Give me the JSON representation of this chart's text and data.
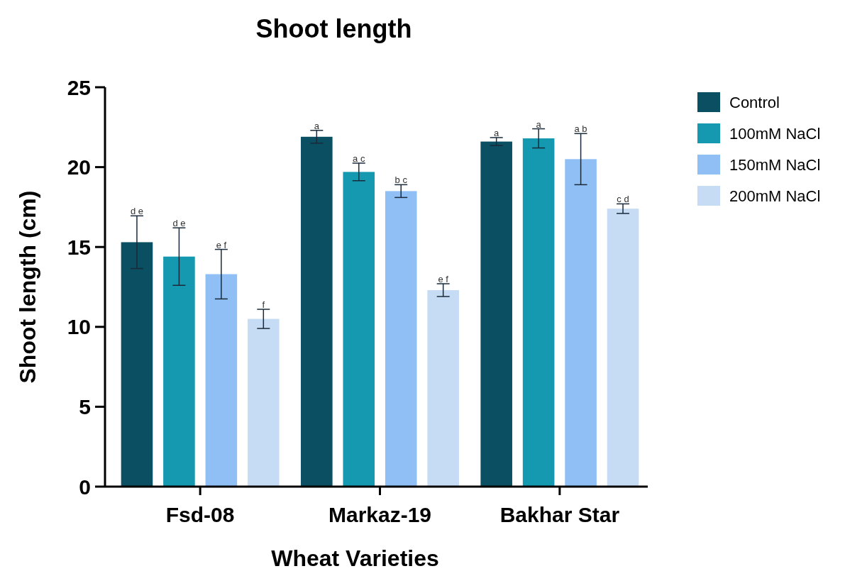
{
  "chart_data": {
    "type": "bar",
    "title": "Shoot length",
    "xlabel": "Wheat Varieties",
    "ylabel": "Shoot length (cm)",
    "categories": [
      "Fsd-08",
      "Markaz-19",
      "Bakhar Star"
    ],
    "series": [
      {
        "name": "Control",
        "color": "#0b4f63",
        "values": [
          15.3,
          21.9,
          21.6
        ],
        "errors": [
          1.65,
          0.4,
          0.25
        ],
        "value_labels": [
          "d e",
          "a",
          "a"
        ]
      },
      {
        "name": "100mM NaCl",
        "color": "#1499b0",
        "values": [
          14.4,
          19.7,
          21.8
        ],
        "errors": [
          1.8,
          0.55,
          0.6
        ],
        "value_labels": [
          "d e",
          "a c",
          "a"
        ]
      },
      {
        "name": "150mM NaCl",
        "color": "#8fbff5",
        "values": [
          13.3,
          18.5,
          20.5
        ],
        "errors": [
          1.55,
          0.4,
          1.6
        ],
        "value_labels": [
          "e f",
          "b c",
          "a b"
        ]
      },
      {
        "name": "200mM NaCl",
        "color": "#c6dcf5",
        "values": [
          10.5,
          12.3,
          17.4
        ],
        "errors": [
          0.6,
          0.4,
          0.3
        ],
        "value_labels": [
          "f",
          "e f",
          "c d"
        ]
      }
    ],
    "ylim": [
      0,
      25
    ],
    "yticks": [
      0,
      5,
      10,
      15,
      20,
      25
    ],
    "grid": false,
    "legend": "top right"
  }
}
